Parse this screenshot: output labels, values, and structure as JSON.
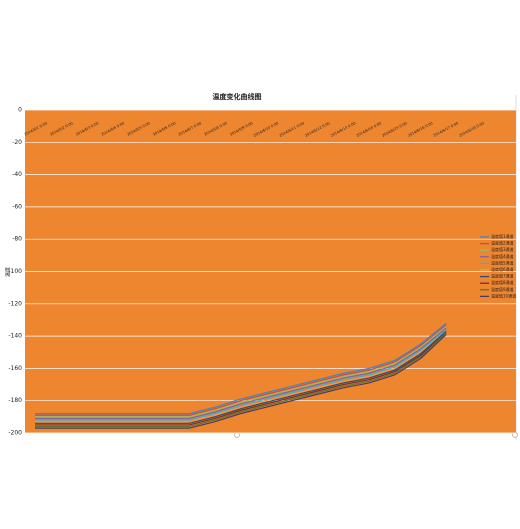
{
  "chart_data": {
    "type": "line",
    "title": "温度变化曲线图",
    "y_label": "温度",
    "categories": [
      "2014/6/1 0:00",
      "2014/6/2 0:00",
      "2014/6/3 0:00",
      "2014/6/4 0:00",
      "2014/6/5 0:00",
      "2014/6/6 0:00",
      "2014/6/7 0:00",
      "2014/6/8 0:00",
      "2014/6/9 0:00",
      "2014/6/10 0:00",
      "2014/6/11 0:00",
      "2014/6/12 0:00",
      "2014/6/13 0:00",
      "2014/6/14 0:00",
      "2014/6/15 0:00",
      "2014/6/16 0:00",
      "2014/6/17 0:00",
      "2014/6/18 0:00"
    ],
    "series": [
      {
        "name": "温度值1通道",
        "color": "#4F81BD",
        "values": [
          -188,
          -188,
          -188,
          -188,
          -188,
          -188,
          -188,
          -184,
          -179,
          -175,
          -171,
          -167,
          -163,
          -160,
          -155,
          -145,
          -132,
          null
        ]
      },
      {
        "name": "温度值2通道",
        "color": "#C0504D",
        "values": [
          -189,
          -189,
          -189,
          -189,
          -189,
          -189,
          -189,
          -185,
          -180,
          -176,
          -172,
          -168,
          -164,
          -161,
          -156,
          -146,
          -133,
          null
        ]
      },
      {
        "name": "温度值3通道",
        "color": "#9BBB59",
        "values": [
          -190,
          -190,
          -190,
          -190,
          -190,
          -190,
          -190,
          -186,
          -181,
          -177,
          -173,
          -169,
          -165,
          -162,
          -157,
          -147,
          -134,
          null
        ]
      },
      {
        "name": "温度值4通道",
        "color": "#8064A2",
        "values": [
          -191,
          -191,
          -191,
          -191,
          -191,
          -191,
          -191,
          -187,
          -182,
          -178,
          -174,
          -170,
          -166,
          -163,
          -158,
          -148,
          -135,
          null
        ]
      },
      {
        "name": "温度值5通道",
        "color": "#4BACC6",
        "values": [
          -192,
          -192,
          -192,
          -192,
          -192,
          -192,
          -192,
          -188,
          -183,
          -179,
          -175,
          -171,
          -167,
          -164,
          -159,
          -149,
          -136,
          null
        ]
      },
      {
        "name": "温度值6通道",
        "color": "#F79646",
        "values": [
          -193,
          -193,
          -193,
          -193,
          -193,
          -193,
          -193,
          -189,
          -184,
          -180,
          -176,
          -172,
          -168,
          -165,
          -160,
          -150,
          -137,
          null
        ]
      },
      {
        "name": "温度值7通道",
        "color": "#2C4D75",
        "values": [
          -194,
          -194,
          -194,
          -194,
          -194,
          -194,
          -194,
          -190,
          -185,
          -181,
          -177,
          -173,
          -169,
          -166,
          -161,
          -151,
          -137,
          null
        ]
      },
      {
        "name": "温度值8通道",
        "color": "#772C2A",
        "values": [
          -195,
          -195,
          -195,
          -195,
          -195,
          -195,
          -195,
          -191,
          -186,
          -182,
          -178,
          -174,
          -170,
          -167,
          -162,
          -152,
          -138,
          null
        ]
      },
      {
        "name": "温度值9通道",
        "color": "#5F7530",
        "values": [
          -196,
          -196,
          -196,
          -196,
          -196,
          -196,
          -196,
          -192,
          -187,
          -183,
          -179,
          -175,
          -171,
          -168,
          -163,
          -153,
          -138,
          null
        ]
      },
      {
        "name": "温度值10通道",
        "color": "#4D3B62",
        "values": [
          -197,
          -197,
          -197,
          -197,
          -197,
          -197,
          -197,
          -193,
          -188,
          -184,
          -180,
          -176,
          -172,
          -169,
          -164,
          -154,
          -139,
          null
        ]
      }
    ],
    "ylim": [
      -200,
      0
    ],
    "yticks": [
      0,
      -20,
      -40,
      -60,
      -80,
      -100,
      -120,
      -140,
      -160,
      -180,
      -200
    ],
    "grid": true,
    "background": "#EE8630",
    "legend": "right"
  }
}
